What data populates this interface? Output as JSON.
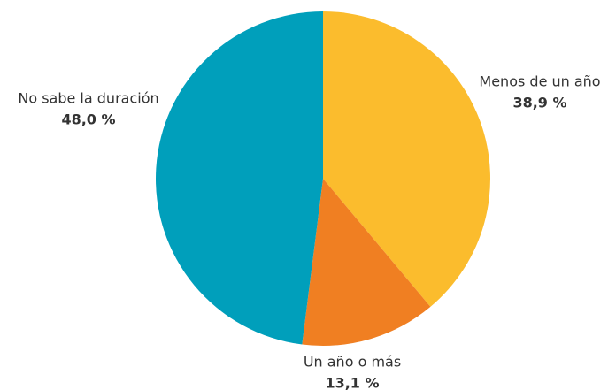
{
  "chart_data": {
    "type": "pie",
    "categories": [
      "Menos de un año",
      "Un año o más",
      "No sabe la duración"
    ],
    "values": [
      38.9,
      13.1,
      48.0
    ],
    "value_labels": [
      "38,9 %",
      "13,1 %",
      "48,0 %"
    ],
    "colors": [
      "#fbbc2d",
      "#f07f22",
      "#009fbb"
    ]
  }
}
